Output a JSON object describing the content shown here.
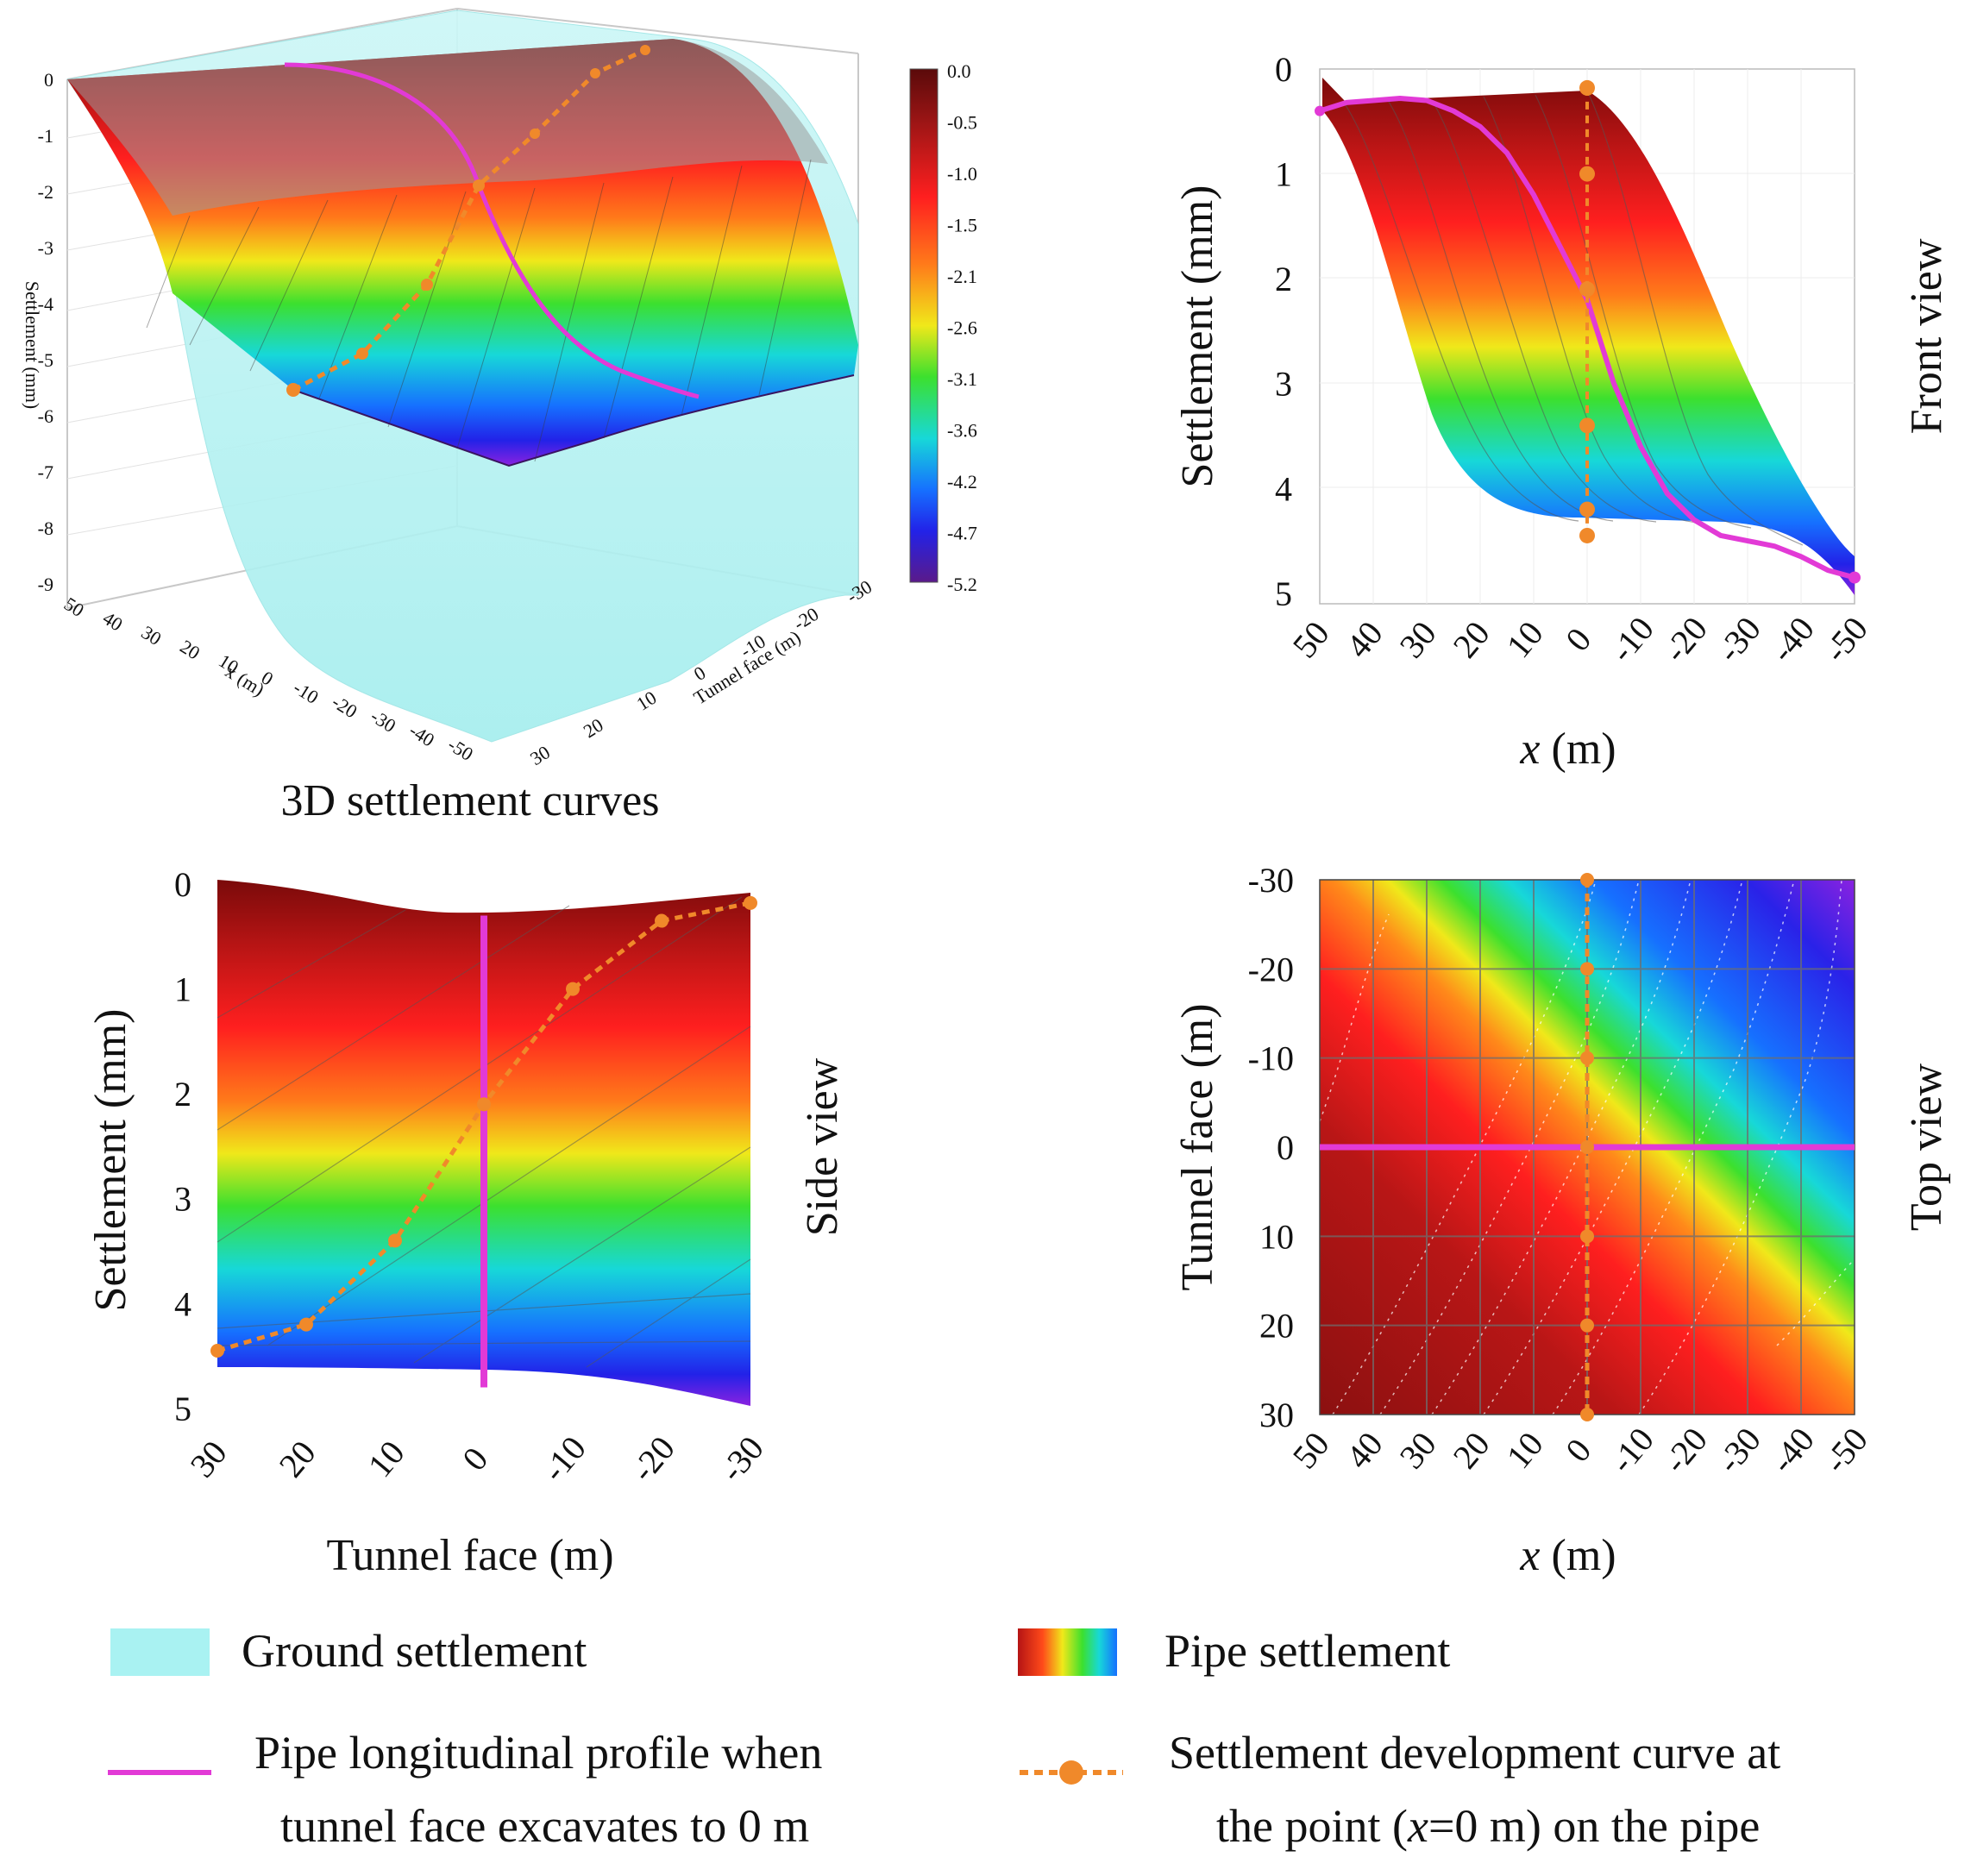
{
  "chart_data": [
    {
      "type": "surface3d",
      "title": "3D settlement curves",
      "zlabel": "Settlement (mm)",
      "xlabel": "x (m)",
      "ylabel": "Tunnel face (m)",
      "z_ticks": [
        "0",
        "-1",
        "-2",
        "-3",
        "-4",
        "-5",
        "-6",
        "-7",
        "-8",
        "-9"
      ],
      "x_ticks": [
        "50",
        "40",
        "30",
        "20",
        "10",
        "0",
        "-10",
        "-20",
        "-30",
        "-40",
        "-50"
      ],
      "y_ticks": [
        "-30",
        "-20",
        "-10",
        "0",
        "10",
        "20",
        "30"
      ],
      "zlim": [
        -9,
        0
      ],
      "colorbar": {
        "values": [
          "0.0",
          "-0.5",
          "-1.0",
          "-1.5",
          "-2.1",
          "-2.6",
          "-3.1",
          "-3.6",
          "-4.2",
          "-4.7",
          "-5.2"
        ],
        "min": -5.2,
        "max": 0.0,
        "colors": [
          "#5a0a0a",
          "#9a1515",
          "#c81e1e",
          "#ff1f1f",
          "#ff8a1a",
          "#f0e81a",
          "#3ce02e",
          "#17d8d8",
          "#1670ff",
          "#2222e8",
          "#7a22e0"
        ]
      }
    },
    {
      "type": "line",
      "side_label": "Front view",
      "xlabel": "x (m)",
      "ylabel": "Settlement (mm)",
      "x_ticks": [
        "50",
        "40",
        "30",
        "20",
        "10",
        "0",
        "-10",
        "-20",
        "-30",
        "-40",
        "-50"
      ],
      "y_ticks": [
        "0",
        "1",
        "2",
        "3",
        "4",
        "5"
      ],
      "xlim": [
        50,
        -50
      ],
      "ylim": [
        0,
        5.1
      ],
      "series": [
        {
          "name": "Pipe longitudinal profile when tunnel face excavates to 0 m",
          "color": "#e23ad6",
          "points": [
            [
              50,
              0.4
            ],
            [
              45,
              0.32
            ],
            [
              40,
              0.3
            ],
            [
              35,
              0.28
            ],
            [
              30,
              0.3
            ],
            [
              25,
              0.4
            ],
            [
              20,
              0.55
            ],
            [
              15,
              0.8
            ],
            [
              10,
              1.2
            ],
            [
              5,
              1.7
            ],
            [
              0,
              2.2
            ],
            [
              -5,
              3.0
            ],
            [
              -10,
              3.6
            ],
            [
              -15,
              4.05
            ],
            [
              -20,
              4.3
            ],
            [
              -25,
              4.45
            ],
            [
              -30,
              4.5
            ],
            [
              -35,
              4.55
            ],
            [
              -40,
              4.65
            ],
            [
              -45,
              4.78
            ],
            [
              -50,
              4.85
            ]
          ]
        },
        {
          "name": "Settlement development curve at the point (x=0 m) on the pipe",
          "color": "#f0892a",
          "points": [
            [
              0,
              0.18
            ],
            [
              0,
              1.0
            ],
            [
              0,
              2.1
            ],
            [
              0,
              3.4
            ],
            [
              0,
              4.2
            ],
            [
              0,
              4.45
            ]
          ]
        }
      ]
    },
    {
      "type": "line",
      "side_label": "Side view",
      "xlabel": "Tunnel face (m)",
      "ylabel": "Settlement (mm)",
      "x_ticks": [
        "30",
        "20",
        "10",
        "0",
        "-10",
        "-20",
        "-30"
      ],
      "y_ticks": [
        "0",
        "1",
        "2",
        "3",
        "4",
        "5"
      ],
      "xlim": [
        30,
        -30
      ],
      "ylim": [
        0,
        5.1
      ],
      "series": [
        {
          "name": "Settlement development curve at the point (x=0 m) on the pipe",
          "color": "#f0892a",
          "points": [
            [
              30,
              4.45
            ],
            [
              20,
              4.2
            ],
            [
              10,
              3.4
            ],
            [
              0,
              2.1
            ],
            [
              -10,
              1.0
            ],
            [
              -20,
              0.35
            ],
            [
              -30,
              0.18
            ]
          ]
        },
        {
          "name": "Pipe longitudinal profile when tunnel face excavates to 0 m",
          "color": "#e23ad6",
          "points": [
            [
              0,
              0.3
            ],
            [
              0,
              4.8
            ]
          ]
        }
      ]
    },
    {
      "type": "heatmap",
      "side_label": "Top view",
      "xlabel": "x (m)",
      "ylabel": "Tunnel face (m)",
      "x_ticks": [
        "50",
        "40",
        "30",
        "20",
        "10",
        "0",
        "-10",
        "-20",
        "-30",
        "-40",
        "-50"
      ],
      "y_ticks": [
        "-30",
        "-20",
        "-10",
        "0",
        "10",
        "20",
        "30"
      ],
      "xlim": [
        50,
        -50
      ],
      "ylim": [
        -30,
        30
      ],
      "lines": [
        {
          "name": "Pipe longitudinal profile when tunnel face excavates to 0 m",
          "color": "#e23ad6",
          "points": [
            [
              50,
              0
            ],
            [
              -50,
              0
            ]
          ]
        },
        {
          "name": "Settlement development curve at the point (x=0 m) on the pipe",
          "color": "#f0892a",
          "points": [
            [
              0,
              -30
            ],
            [
              0,
              -20
            ],
            [
              0,
              -10
            ],
            [
              0,
              0
            ],
            [
              0,
              10
            ],
            [
              0,
              20
            ],
            [
              0,
              30
            ]
          ]
        }
      ]
    }
  ],
  "legend": {
    "ground": "Ground settlement",
    "pipe": "Pipe settlement",
    "profile_line1": "Pipe longitudinal profile when",
    "profile_line2": "tunnel face excavates to 0 m",
    "dev_line1": "Settlement development curve at",
    "dev_line2_a": "the point (",
    "dev_line2_x": "x",
    "dev_line2_b": "=0 m) on the pipe"
  },
  "colors": {
    "ground": "#a9f2f2",
    "profile": "#e23ad6",
    "development": "#f0892a"
  }
}
